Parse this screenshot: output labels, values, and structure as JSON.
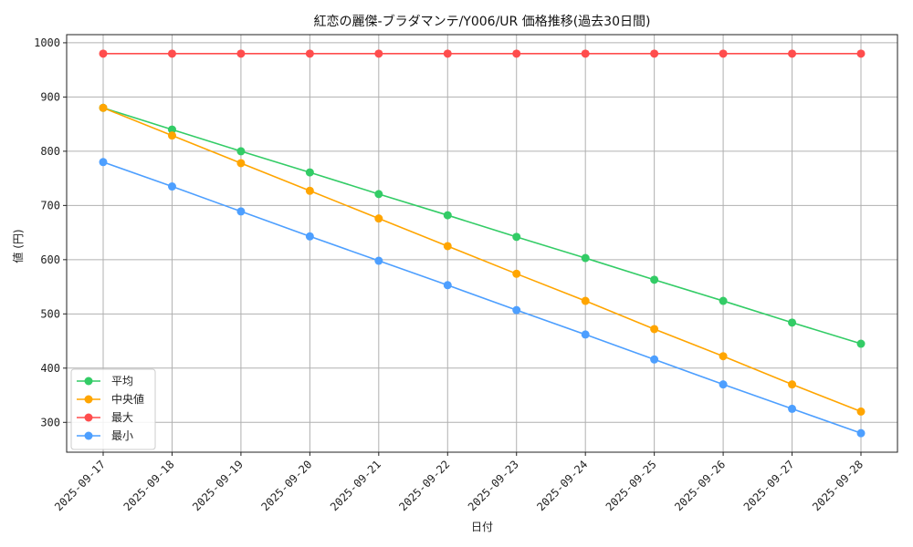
{
  "chart_data": {
    "type": "line",
    "title": "紅恋の麗傑-ブラダマンテ/Y006/UR 価格推移(過去30日間)",
    "xlabel": "日付",
    "ylabel": "値 (円)",
    "categories": [
      "2025-09-17",
      "2025-09-18",
      "2025-09-19",
      "2025-09-20",
      "2025-09-21",
      "2025-09-22",
      "2025-09-23",
      "2025-09-24",
      "2025-09-25",
      "2025-09-26",
      "2025-09-27",
      "2025-09-28"
    ],
    "ylim": [
      245,
      1015
    ],
    "yticks": [
      300,
      400,
      500,
      600,
      700,
      800,
      900,
      1000
    ],
    "grid": true,
    "legend_position": "lower-left",
    "series": [
      {
        "name": "平均",
        "color": "#33cc66",
        "values": [
          880,
          840,
          800,
          761,
          721,
          682,
          642,
          603,
          563,
          524,
          484,
          445
        ]
      },
      {
        "name": "中央値",
        "color": "#ffa500",
        "values": [
          880,
          829,
          778,
          727,
          676,
          625,
          574,
          524,
          472,
          422,
          370,
          320
        ]
      },
      {
        "name": "最大",
        "color": "#ff4d4d",
        "values": [
          980,
          980,
          980,
          980,
          980,
          980,
          980,
          980,
          980,
          980,
          980,
          980
        ]
      },
      {
        "name": "最小",
        "color": "#4d9fff",
        "values": [
          780,
          735,
          689,
          643,
          598,
          553,
          507,
          462,
          416,
          370,
          325,
          280
        ]
      }
    ]
  }
}
